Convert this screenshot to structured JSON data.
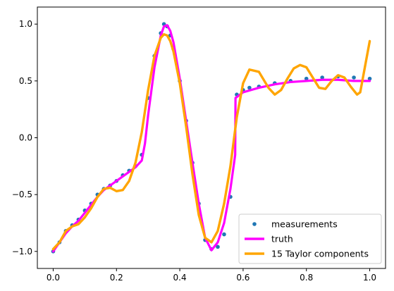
{
  "chart_data": {
    "type": "line",
    "title": "",
    "xlabel": "",
    "ylabel": "",
    "xlim": [
      -0.05,
      1.05
    ],
    "ylim": [
      -1.15,
      1.15
    ],
    "xticks": [
      0.0,
      0.2,
      0.4,
      0.6,
      0.8,
      1.0
    ],
    "xtick_labels": [
      "0.0",
      "0.2",
      "0.4",
      "0.6",
      "0.8",
      "1.0"
    ],
    "yticks": [
      -1.0,
      -0.5,
      0.0,
      0.5,
      1.0
    ],
    "ytick_labels": [
      "−1.0",
      "−0.5",
      "0.0",
      "0.5",
      "1.0"
    ],
    "grid": false,
    "legend_position": "lower-right",
    "series": [
      {
        "name": "measurements",
        "kind": "scatter",
        "color": "#1f77b4",
        "x": [
          0.0,
          0.02,
          0.04,
          0.06,
          0.08,
          0.1,
          0.12,
          0.14,
          0.16,
          0.18,
          0.2,
          0.22,
          0.24,
          0.26,
          0.28,
          0.3,
          0.32,
          0.34,
          0.35,
          0.36,
          0.37,
          0.38,
          0.4,
          0.42,
          0.44,
          0.46,
          0.48,
          0.5,
          0.52,
          0.54,
          0.56,
          0.58,
          0.6,
          0.62,
          0.65,
          0.7,
          0.75,
          0.8,
          0.85,
          0.9,
          0.95,
          1.0
        ],
        "y": [
          -1.0,
          -0.92,
          -0.82,
          -0.77,
          -0.72,
          -0.64,
          -0.58,
          -0.5,
          -0.45,
          -0.42,
          -0.38,
          -0.33,
          -0.29,
          -0.25,
          -0.15,
          0.35,
          0.72,
          0.92,
          1.0,
          0.98,
          0.9,
          0.78,
          0.5,
          0.15,
          -0.22,
          -0.58,
          -0.9,
          -0.98,
          -0.96,
          -0.85,
          -0.52,
          0.38,
          0.42,
          0.44,
          0.45,
          0.48,
          0.5,
          0.52,
          0.53,
          0.54,
          0.53,
          0.52
        ]
      },
      {
        "name": "truth",
        "kind": "line",
        "color": "#ff00ff",
        "x": [
          0.0,
          0.02,
          0.04,
          0.06,
          0.08,
          0.1,
          0.12,
          0.14,
          0.16,
          0.18,
          0.2,
          0.22,
          0.24,
          0.26,
          0.28,
          0.29,
          0.3,
          0.32,
          0.34,
          0.35,
          0.36,
          0.37,
          0.38,
          0.4,
          0.42,
          0.44,
          0.46,
          0.48,
          0.5,
          0.52,
          0.54,
          0.56,
          0.575,
          0.576,
          0.6,
          0.65,
          0.7,
          0.75,
          0.8,
          0.85,
          0.9,
          0.95,
          1.0
        ],
        "y": [
          -1.0,
          -0.92,
          -0.84,
          -0.78,
          -0.73,
          -0.66,
          -0.59,
          -0.52,
          -0.46,
          -0.42,
          -0.38,
          -0.34,
          -0.3,
          -0.26,
          -0.2,
          -0.05,
          0.2,
          0.62,
          0.9,
          0.98,
          0.99,
          0.94,
          0.84,
          0.52,
          0.15,
          -0.22,
          -0.58,
          -0.88,
          -0.99,
          -0.92,
          -0.75,
          -0.45,
          -0.15,
          0.35,
          0.4,
          0.44,
          0.47,
          0.49,
          0.5,
          0.51,
          0.51,
          0.5,
          0.5
        ]
      },
      {
        "name": "15 Taylor components",
        "kind": "line",
        "color": "#ffa500",
        "x": [
          0.0,
          0.02,
          0.04,
          0.06,
          0.08,
          0.1,
          0.12,
          0.14,
          0.16,
          0.18,
          0.2,
          0.22,
          0.24,
          0.26,
          0.28,
          0.3,
          0.32,
          0.34,
          0.35,
          0.36,
          0.37,
          0.38,
          0.4,
          0.42,
          0.44,
          0.46,
          0.48,
          0.5,
          0.52,
          0.54,
          0.56,
          0.58,
          0.6,
          0.62,
          0.65,
          0.68,
          0.7,
          0.72,
          0.74,
          0.76,
          0.78,
          0.8,
          0.82,
          0.84,
          0.86,
          0.88,
          0.9,
          0.92,
          0.94,
          0.96,
          0.97,
          0.98,
          0.99,
          1.0
        ],
        "y": [
          -0.98,
          -0.92,
          -0.82,
          -0.78,
          -0.76,
          -0.7,
          -0.62,
          -0.52,
          -0.45,
          -0.44,
          -0.47,
          -0.46,
          -0.38,
          -0.22,
          0.05,
          0.42,
          0.72,
          0.88,
          0.91,
          0.9,
          0.85,
          0.76,
          0.48,
          0.1,
          -0.32,
          -0.68,
          -0.88,
          -0.92,
          -0.82,
          -0.58,
          -0.25,
          0.18,
          0.48,
          0.6,
          0.58,
          0.44,
          0.38,
          0.42,
          0.52,
          0.61,
          0.64,
          0.62,
          0.53,
          0.44,
          0.43,
          0.5,
          0.55,
          0.53,
          0.45,
          0.38,
          0.4,
          0.55,
          0.7,
          0.85
        ]
      }
    ]
  }
}
